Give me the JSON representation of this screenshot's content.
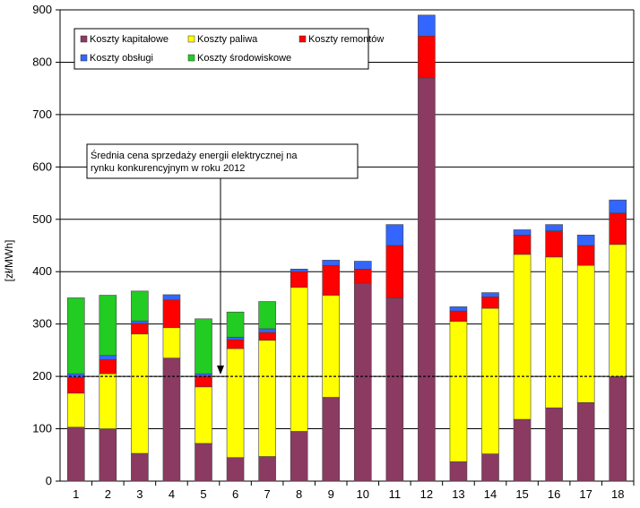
{
  "chart_data": {
    "type": "bar",
    "stacked": true,
    "ylabel": "[zł/MWh]",
    "ylim": [
      0,
      900
    ],
    "yticks": [
      0,
      100,
      200,
      300,
      400,
      500,
      600,
      700,
      800,
      900
    ],
    "grid": true,
    "legend_position": "top-left",
    "categories": [
      "1",
      "2",
      "3",
      "4",
      "5",
      "6",
      "7",
      "8",
      "9",
      "10",
      "11",
      "12",
      "13",
      "14",
      "15",
      "16",
      "17",
      "18"
    ],
    "series": [
      {
        "name": "Koszty kapitałowe",
        "color": "#8B3A62",
        "values": [
          103,
          100,
          53,
          235,
          72,
          45,
          47,
          95,
          160,
          378,
          350,
          770,
          37,
          52,
          118,
          140,
          150,
          200
        ]
      },
      {
        "name": "Koszty paliwa",
        "color": "#FFFF00",
        "values": [
          65,
          105,
          228,
          58,
          108,
          208,
          222,
          275,
          195,
          0,
          0,
          0,
          268,
          278,
          315,
          288,
          262,
          252
        ]
      },
      {
        "name": "Koszty remontów",
        "color": "#FF0000",
        "values": [
          30,
          27,
          20,
          53,
          20,
          17,
          15,
          30,
          57,
          27,
          100,
          80,
          20,
          22,
          37,
          50,
          38,
          60
        ]
      },
      {
        "name": "Koszty obsługi",
        "color": "#3366FF",
        "values": [
          7,
          8,
          5,
          10,
          5,
          5,
          7,
          5,
          10,
          15,
          40,
          40,
          8,
          8,
          10,
          12,
          20,
          25
        ]
      },
      {
        "name": "Koszty środowiskowe",
        "color": "#22CC22",
        "values": [
          145,
          115,
          57,
          0,
          105,
          48,
          52,
          0,
          0,
          0,
          0,
          0,
          0,
          0,
          0,
          0,
          0,
          0
        ]
      }
    ],
    "reference_line": {
      "value": 200,
      "style": "dashed"
    },
    "annotation": {
      "lines": [
        "Średnia cena sprzedaży energii elektrycznej na",
        "rynku konkurencyjnym  w roku 2012"
      ]
    }
  }
}
